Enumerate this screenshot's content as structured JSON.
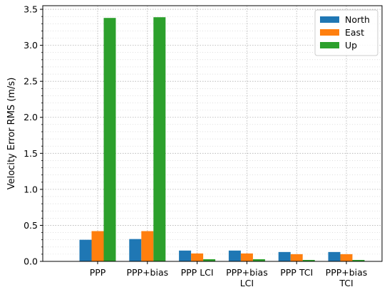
{
  "chart_data": {
    "type": "bar",
    "title": "",
    "xlabel": "",
    "ylabel": "Velocity Error RMS (m/s)",
    "ylim": [
      0,
      3.55
    ],
    "yticks": [
      "0.0",
      "0.5",
      "1.0",
      "1.5",
      "2.0",
      "2.5",
      "3.0",
      "3.5"
    ],
    "grid": true,
    "legend_position": "top-right",
    "categories": [
      [
        "PPP"
      ],
      [
        "PPP+bias"
      ],
      [
        "PPP LCI"
      ],
      [
        "PPP+bias",
        "LCI"
      ],
      [
        "PPP TCI"
      ],
      [
        "PPP+bias",
        "TCI"
      ]
    ],
    "series": [
      {
        "name": "North",
        "color": "#1f77b4",
        "values": [
          0.3,
          0.31,
          0.15,
          0.15,
          0.13,
          0.13
        ]
      },
      {
        "name": "East",
        "color": "#ff7f0e",
        "values": [
          0.42,
          0.42,
          0.11,
          0.11,
          0.1,
          0.1
        ]
      },
      {
        "name": "Up",
        "color": "#2ca02c",
        "values": [
          3.38,
          3.39,
          0.03,
          0.03,
          0.02,
          0.02
        ]
      }
    ]
  }
}
